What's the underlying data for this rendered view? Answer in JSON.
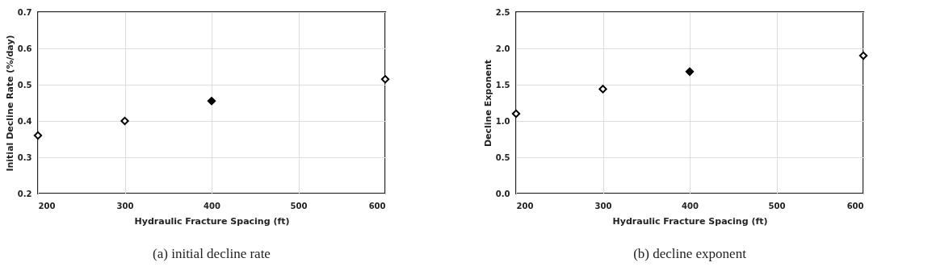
{
  "chart_data": [
    {
      "type": "scatter",
      "xlabel": "Hydraulic Fracture Spacing (ft)",
      "ylabel": "Initial Decline Rate (%/day)",
      "xlim": [
        200,
        600
      ],
      "xticks": [
        200,
        300,
        400,
        500,
        600
      ],
      "ylim": [
        0.2,
        0.7
      ],
      "yticks": [
        0.2,
        0.3,
        0.4,
        0.5,
        0.6,
        0.7
      ],
      "grid": true,
      "marker": "diamond",
      "annotations": [
        "(a) initial decline rate"
      ],
      "series": [
        {
          "color": "#ffffff",
          "x": [
            200,
            300,
            600
          ],
          "values": [
            0.36,
            0.4,
            0.515
          ]
        },
        {
          "color": "#000000",
          "x": [
            400
          ],
          "values": [
            0.455
          ]
        }
      ]
    },
    {
      "type": "scatter",
      "xlabel": "Hydraulic Fracture Spacing (ft)",
      "ylabel": "Decline Exponent",
      "xlim": [
        200,
        600
      ],
      "xticks": [
        200,
        300,
        400,
        500,
        600
      ],
      "ylim": [
        0.0,
        2.5
      ],
      "yticks": [
        {
          "value": 0,
          "label": "0.0"
        },
        0.5,
        {
          "value": 1,
          "label": "1.0"
        },
        1.5,
        {
          "value": 2,
          "label": "2.0"
        },
        2.5
      ],
      "grid": true,
      "marker": "diamond",
      "annotations": [
        "(b) decline exponent"
      ],
      "series": [
        {
          "color": "#ffffff",
          "x": [
            200,
            300,
            600
          ],
          "values": [
            1.1,
            1.44,
            1.9
          ]
        },
        {
          "color": "#000000",
          "x": [
            400
          ],
          "values": [
            1.68
          ]
        }
      ]
    }
  ]
}
